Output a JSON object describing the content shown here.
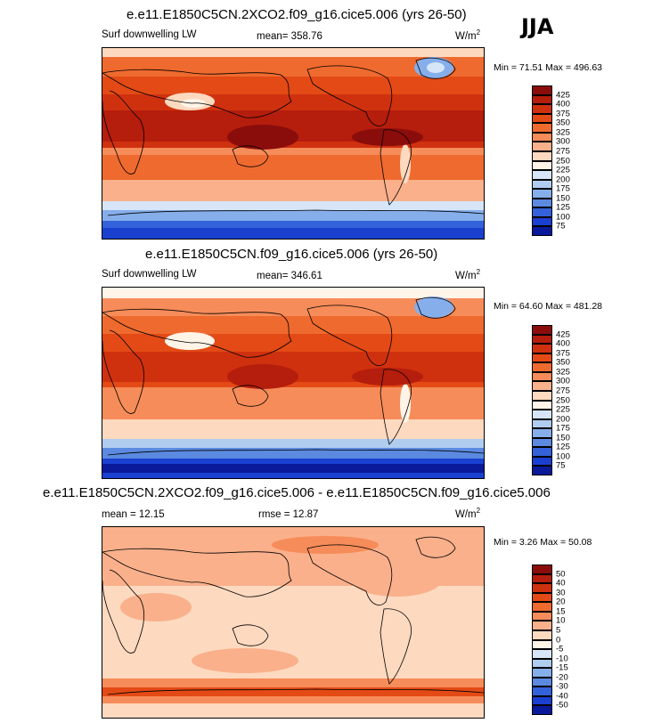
{
  "season": "JJA",
  "panels": [
    {
      "title": "e.e11.E1850C5CN.2XCO2.f09_g16.cice5.006 (yrs 26-50)",
      "left_label": "Surf downwelling LW",
      "center_label": "mean= 358.76",
      "units": "W/m",
      "units_sup": "2",
      "minmax": "Min =  71.51 Max = 496.63",
      "levels": [
        "425",
        "400",
        "375",
        "350",
        "325",
        "300",
        "275",
        "250",
        "225",
        "200",
        "175",
        "150",
        "125",
        "100",
        "75"
      ],
      "colors": [
        "#8b0d0b",
        "#b51d0c",
        "#cf310f",
        "#e34a15",
        "#ef6a2e",
        "#f68c59",
        "#f9b08b",
        "#fdd9bf",
        "#fff4e8",
        "#d6e6f8",
        "#b0cdf0",
        "#86aeea",
        "#5b8ae0",
        "#3362da",
        "#1a40d0",
        "#09199a"
      ]
    },
    {
      "title": "e.e11.E1850C5CN.f09_g16.cice5.006 (yrs 26-50)",
      "left_label": "Surf downwelling LW",
      "center_label": "mean= 346.61",
      "units": "W/m",
      "units_sup": "2",
      "minmax": "Min =  64.60 Max = 481.28",
      "levels": [
        "425",
        "400",
        "375",
        "350",
        "325",
        "300",
        "275",
        "250",
        "225",
        "200",
        "175",
        "150",
        "125",
        "100",
        "75"
      ],
      "colors": [
        "#8b0d0b",
        "#b51d0c",
        "#cf310f",
        "#e34a15",
        "#ef6a2e",
        "#f68c59",
        "#f9b08b",
        "#fdd9bf",
        "#fff4e8",
        "#d6e6f8",
        "#b0cdf0",
        "#86aeea",
        "#5b8ae0",
        "#3362da",
        "#1a40d0",
        "#09199a"
      ]
    },
    {
      "title": "e.e11.E1850C5CN.2XCO2.f09_g16.cice5.006 - e.e11.E1850C5CN.f09_g16.cice5.006",
      "left_label": "mean =  12.15",
      "center_label": "rmse =  12.87",
      "units": "W/m",
      "units_sup": "2",
      "minmax": "Min =   3.26 Max =  50.08",
      "levels": [
        "50",
        "40",
        "30",
        "20",
        "15",
        "10",
        "5",
        "0",
        "-5",
        "-10",
        "-15",
        "-20",
        "-30",
        "-40",
        "-50"
      ],
      "colors": [
        "#8b0d0b",
        "#b51d0c",
        "#cf310f",
        "#e34a15",
        "#ef6a2e",
        "#f68c59",
        "#f9b08b",
        "#fdd9bf",
        "#fff4e8",
        "#d6e6f8",
        "#b0cdf0",
        "#86aeea",
        "#5b8ae0",
        "#3362da",
        "#1a40d0",
        "#09199a"
      ]
    }
  ]
}
